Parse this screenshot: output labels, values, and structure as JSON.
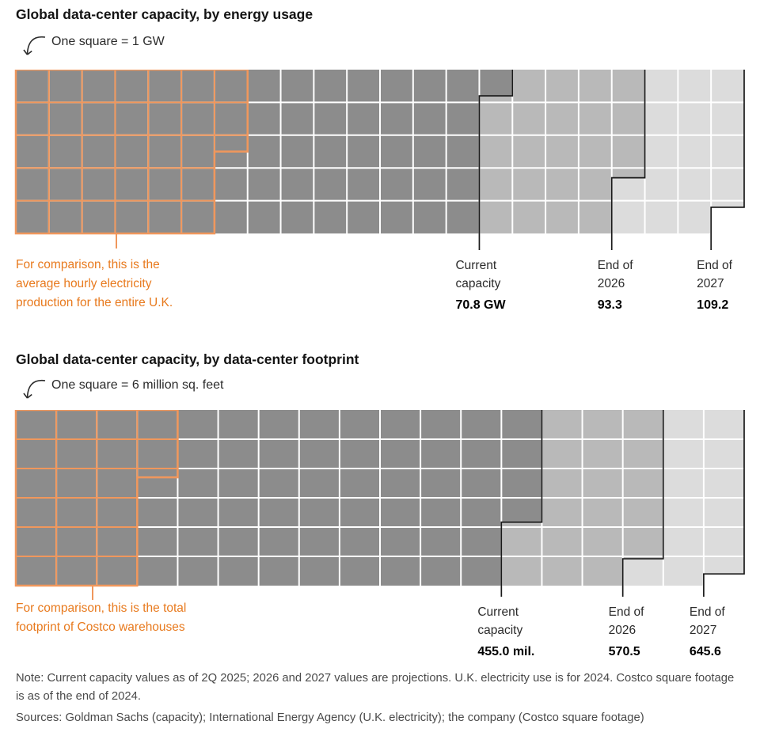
{
  "colors": {
    "current": "#8c8c8c",
    "end_2026": "#b9b9b9",
    "end_2027": "#dcdcdc",
    "grid_line": "#ffffff",
    "marker_line": "#1a1a1a",
    "accent_line": "#f0975c",
    "accent_text": "#e87a1e",
    "background": "#ffffff"
  },
  "note": "Note: Current capacity values as of 2Q 2025; 2026 and 2027 values are projections. U.K. electricity use is for 2024. Costco square footage is as of the end of 2024.",
  "sources": "Sources: Goldman Sachs (capacity); International Energy Agency (U.K. electricity); the company (Costco square footage)",
  "chart_data": [
    {
      "type": "waffle",
      "title": "Global data-center capacity, by energy usage",
      "legend": "One square = 1 GW",
      "rows": 5,
      "cols": 22,
      "unit_per_square": 1,
      "unit": "GW",
      "markers": [
        {
          "label": "Current capacity",
          "value": 70.8,
          "value_label": "70.8 GW"
        },
        {
          "label": "End of 2026",
          "value": 93.3,
          "value_label": "93.3"
        },
        {
          "label": "End of 2027",
          "value": 109.2,
          "value_label": "109.2"
        }
      ],
      "comparison": {
        "text": "For comparison, this is the average hourly electricity production for the entire U.K.",
        "value": 32.5
      }
    },
    {
      "type": "waffle",
      "title": "Global data-center capacity, by data-center footprint",
      "legend": "One square = 6 million sq. feet",
      "rows": 6,
      "cols": 18,
      "unit_per_square": 6,
      "unit": "million sq. feet",
      "markers": [
        {
          "label": "Current capacity",
          "value": 455.0,
          "value_label": "455.0 mil."
        },
        {
          "label": "End of 2026",
          "value": 570.5,
          "value_label": "570.5"
        },
        {
          "label": "End of 2027",
          "value": 645.6,
          "value_label": "645.6"
        }
      ],
      "comparison": {
        "text": "For comparison, this is the total footprint of Costco warehouses",
        "value": 121.8
      }
    }
  ]
}
